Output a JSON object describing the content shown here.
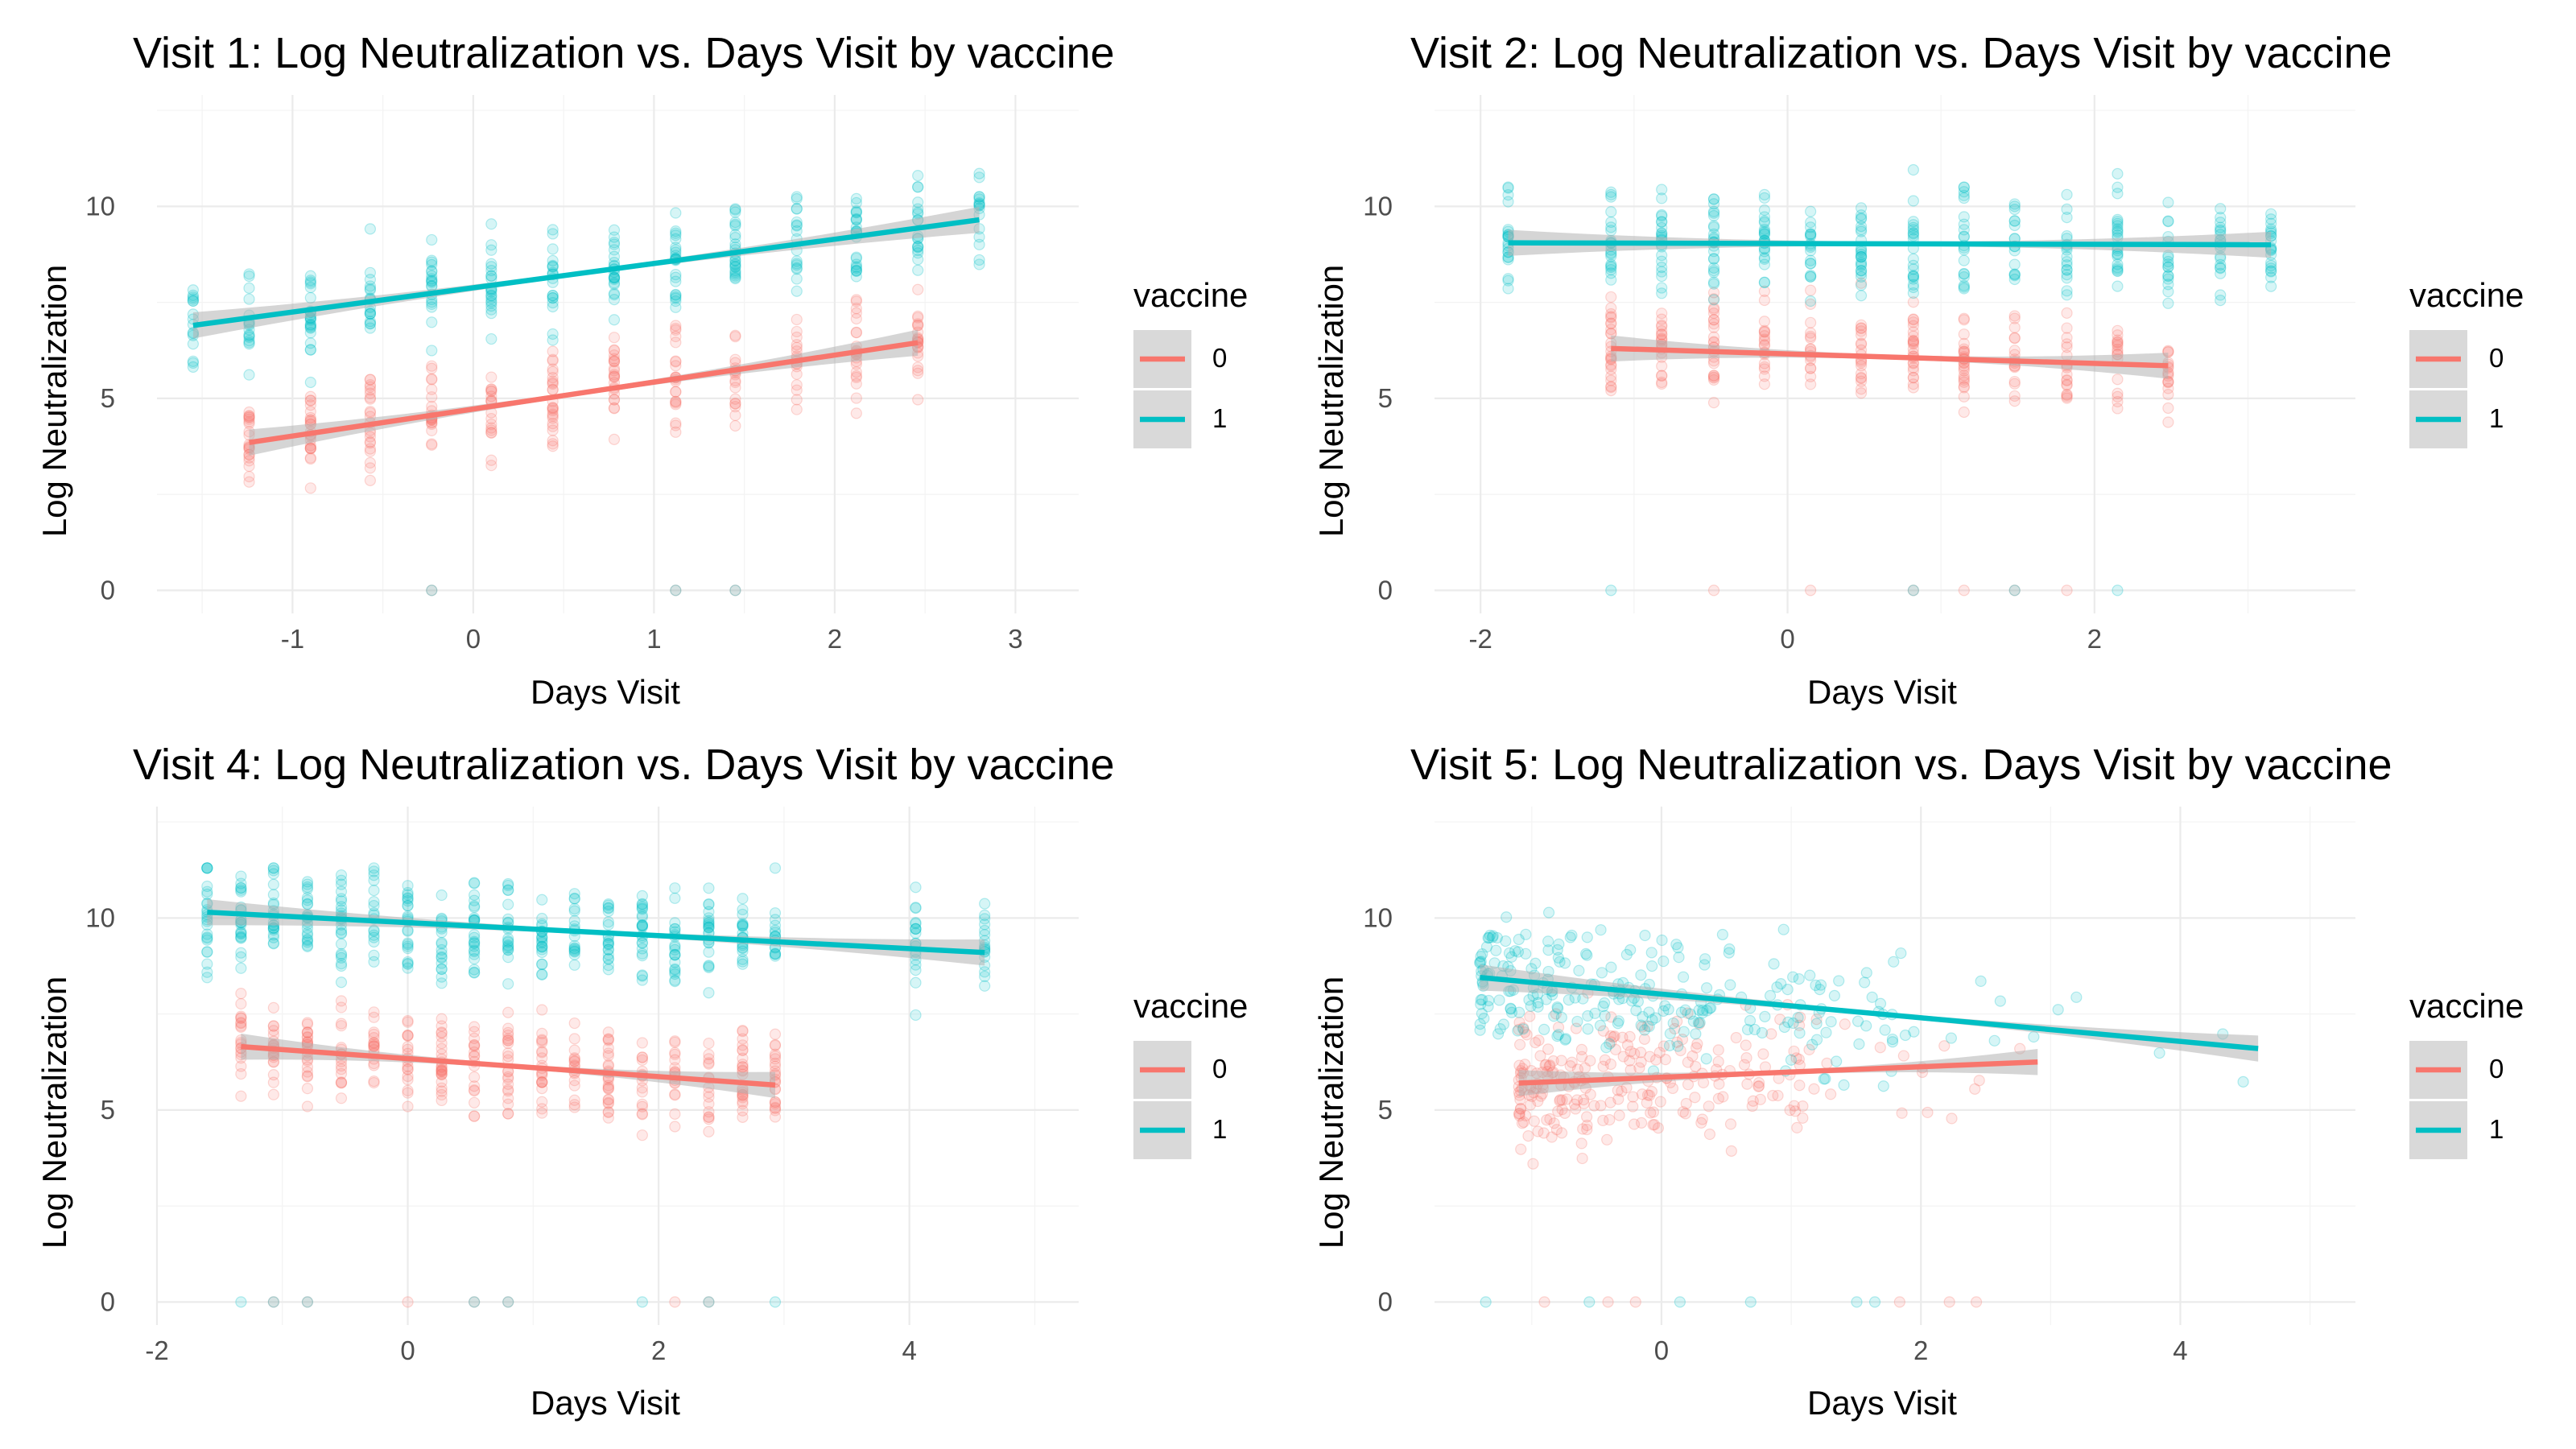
{
  "colors": {
    "vaccine_0": "#F8766D",
    "vaccine_1": "#00BFC4",
    "ribbon": "#b3b3b3",
    "legend_key_bg": "#d9d9d9"
  },
  "chart_data": [
    {
      "type": "scatter",
      "title": "Visit 1: Log Neutralization vs. Days Visit by vaccine",
      "xlabel": "Days Visit",
      "ylabel": "Log Neutralization",
      "xlim": [
        -1.75,
        3.35
      ],
      "ylim": [
        -0.6,
        12.9
      ],
      "x_ticks": [
        -1,
        0,
        1,
        2,
        3
      ],
      "x_tick_labels": [
        "-1",
        "0",
        "1",
        "2",
        "3"
      ],
      "y_ticks": [
        0,
        5,
        10
      ],
      "y_tick_labels": [
        "0",
        "5",
        "10"
      ],
      "grid": true,
      "legend": {
        "title": "vaccine",
        "position": "right",
        "entries": [
          "0",
          "1"
        ]
      },
      "point_columns_x": [
        -1.55,
        -1.24,
        -0.9,
        -0.57,
        -0.23,
        0.1,
        0.44,
        0.78,
        1.12,
        1.45,
        1.79,
        2.12,
        2.46,
        2.8
      ],
      "series": [
        {
          "name": "0",
          "color": "#F8766D",
          "fit": {
            "x": [
              -1.24,
              2.46
            ],
            "y": [
              3.85,
              6.45
            ]
          },
          "point_y_range": [
            2.5,
            8.0
          ],
          "point_x_range": [
            -1.24,
            2.46
          ]
        },
        {
          "name": "1",
          "color": "#00BFC4",
          "fit": {
            "x": [
              -1.55,
              2.8
            ],
            "y": [
              6.9,
              9.65
            ]
          },
          "point_y_range": [
            4.0,
            11.3
          ],
          "point_x_range": [
            -1.55,
            2.8
          ]
        }
      ]
    },
    {
      "type": "scatter",
      "title": "Visit 2: Log Neutralization vs. Days Visit by vaccine",
      "xlabel": "Days Visit",
      "ylabel": "Log Neutralization",
      "xlim": [
        -2.3,
        3.7
      ],
      "ylim": [
        -0.6,
        12.9
      ],
      "x_ticks": [
        -2,
        0,
        2
      ],
      "x_tick_labels": [
        "-2",
        "0",
        "2"
      ],
      "y_ticks": [
        0,
        5,
        10
      ],
      "y_tick_labels": [
        "0",
        "5",
        "10"
      ],
      "grid": true,
      "legend": {
        "title": "vaccine",
        "position": "right",
        "entries": [
          "0",
          "1"
        ]
      },
      "point_columns_x": [
        -1.82,
        -1.15,
        -0.82,
        -0.48,
        -0.15,
        0.15,
        0.48,
        0.82,
        1.15,
        1.48,
        1.82,
        2.15,
        2.48,
        2.82,
        3.15
      ],
      "series": [
        {
          "name": "0",
          "color": "#F8766D",
          "fit": {
            "x": [
              -1.15,
              2.48
            ],
            "y": [
              6.3,
              5.85
            ]
          },
          "point_y_range": [
            3.5,
            9.0
          ],
          "point_x_range": [
            -1.15,
            2.48
          ]
        },
        {
          "name": "1",
          "color": "#00BFC4",
          "fit": {
            "x": [
              -1.82,
              3.15
            ],
            "y": [
              9.05,
              9.0
            ]
          },
          "point_y_range": [
            5.5,
            11.3
          ],
          "point_x_range": [
            -1.82,
            3.15
          ]
        }
      ]
    },
    {
      "type": "scatter",
      "title": "Visit 4: Log Neutralization vs. Days Visit by vaccine",
      "xlabel": "Days Visit",
      "ylabel": "Log Neutralization",
      "xlim": [
        -2.0,
        5.35
      ],
      "ylim": [
        -0.6,
        12.9
      ],
      "x_ticks": [
        -2,
        0,
        2,
        4
      ],
      "x_tick_labels": [
        "-2",
        "0",
        "2",
        "4"
      ],
      "y_ticks": [
        0,
        5,
        10
      ],
      "y_tick_labels": [
        "0",
        "5",
        "10"
      ],
      "grid": true,
      "legend": {
        "title": "vaccine",
        "position": "right",
        "entries": [
          "0",
          "1"
        ]
      },
      "point_columns_x": [
        -1.6,
        -1.33,
        -1.07,
        -0.8,
        -0.53,
        -0.27,
        0.0,
        0.27,
        0.53,
        0.8,
        1.07,
        1.33,
        1.6,
        1.87,
        2.13,
        2.4,
        2.67,
        2.93,
        4.05,
        4.6
      ],
      "series": [
        {
          "name": "0",
          "color": "#F8766D",
          "fit": {
            "x": [
              -1.33,
              2.93
            ],
            "y": [
              6.65,
              5.65
            ]
          },
          "point_y_range": [
            3.5,
            8.5
          ],
          "point_x_range": [
            -1.33,
            2.93
          ]
        },
        {
          "name": "1",
          "color": "#00BFC4",
          "fit": {
            "x": [
              -1.6,
              4.6
            ],
            "y": [
              10.15,
              9.1
            ]
          },
          "point_y_range": [
            6.0,
            11.3
          ],
          "point_x_range": [
            -1.6,
            4.6
          ]
        }
      ]
    },
    {
      "type": "scatter",
      "title": "Visit 5: Log Neutralization vs. Days Visit by vaccine",
      "xlabel": "Days Visit",
      "ylabel": "Log Neutralization",
      "xlim": [
        -1.75,
        5.35
      ],
      "ylim": [
        -0.6,
        12.9
      ],
      "x_ticks": [
        0,
        2,
        4
      ],
      "x_tick_labels": [
        "0",
        "2",
        "4"
      ],
      "y_ticks": [
        0,
        5,
        10
      ],
      "y_tick_labels": [
        "0",
        "5",
        "10"
      ],
      "grid": true,
      "legend": {
        "title": "vaccine",
        "position": "right",
        "entries": [
          "0",
          "1"
        ]
      },
      "point_columns_x": [],
      "series": [
        {
          "name": "0",
          "color": "#F8766D",
          "fit": {
            "x": [
              -1.1,
              2.9
            ],
            "y": [
              5.7,
              6.25
            ]
          },
          "point_y_range": [
            3.0,
            9.0
          ],
          "point_x_range": [
            -1.1,
            2.9
          ]
        },
        {
          "name": "1",
          "color": "#00BFC4",
          "fit": {
            "x": [
              -1.4,
              4.6
            ],
            "y": [
              8.45,
              6.6
            ]
          },
          "point_y_range": [
            4.0,
            11.3
          ],
          "point_x_range": [
            -1.4,
            4.6
          ]
        }
      ]
    }
  ]
}
